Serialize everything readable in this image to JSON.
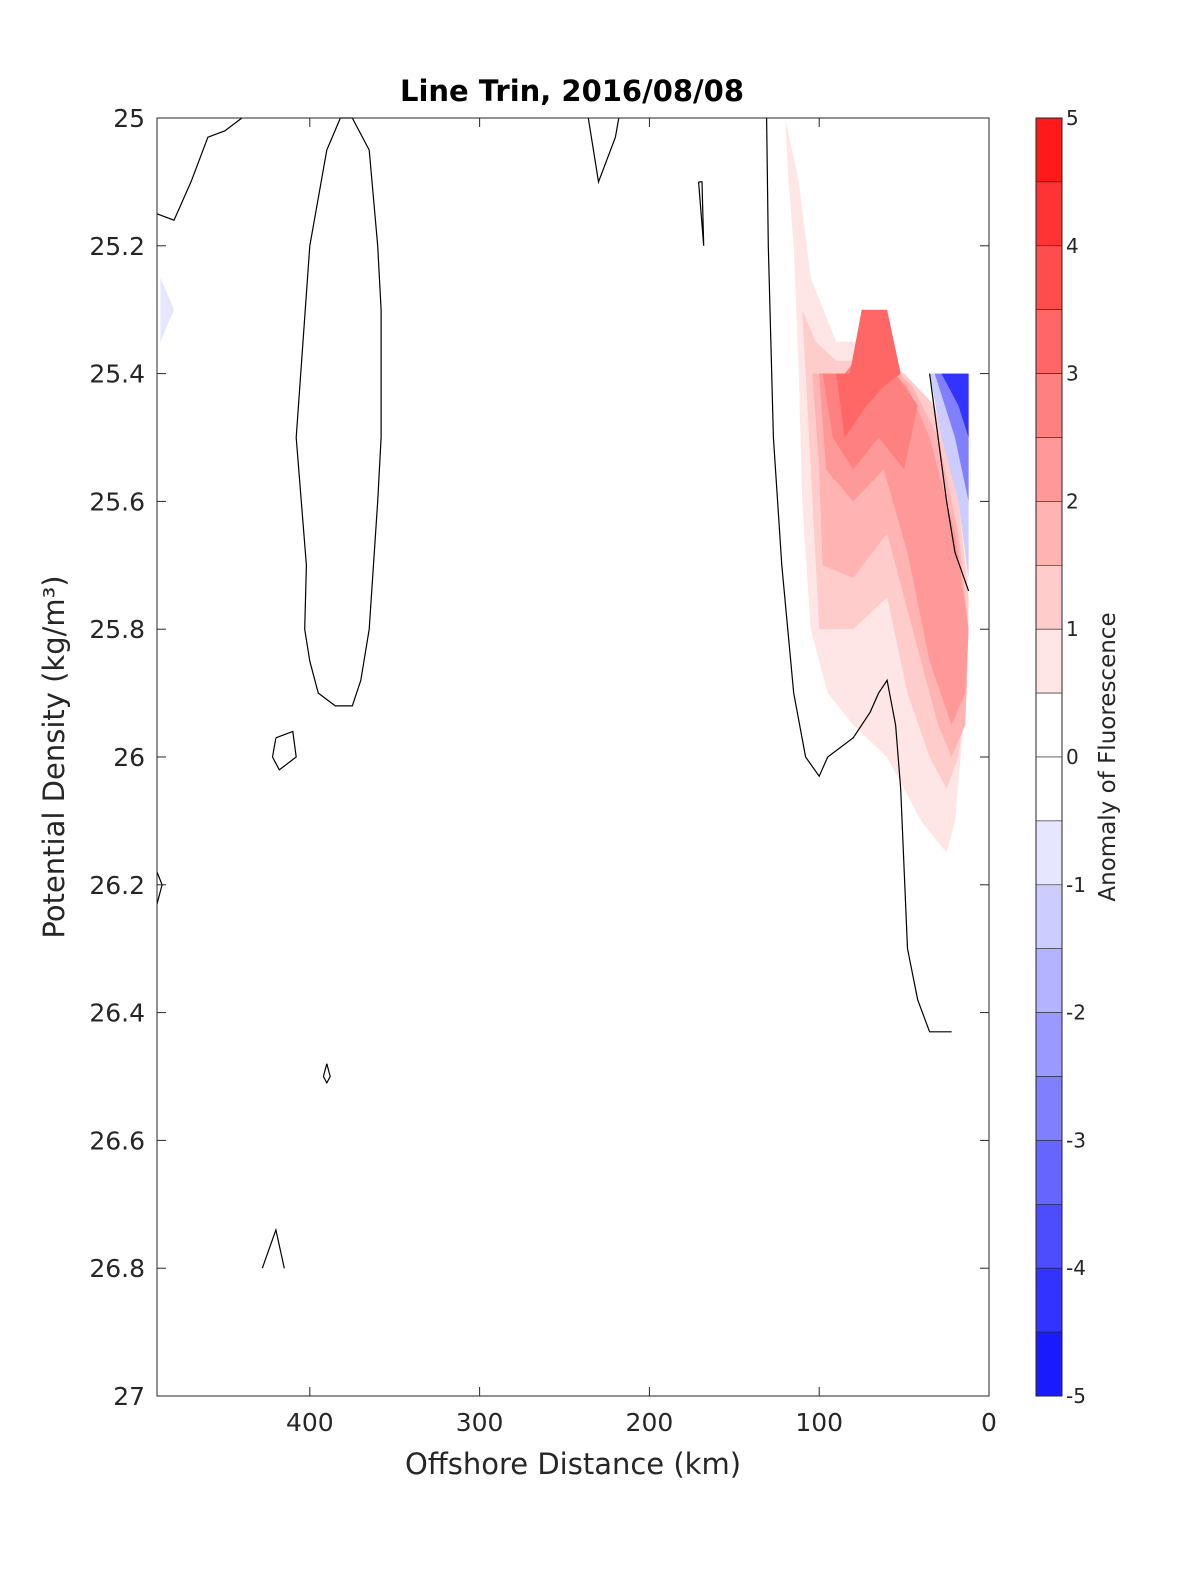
{
  "chart_data": {
    "type": "contour",
    "title": "Line Trin, 2016/08/08",
    "xlabel": "Offshore Distance (km)",
    "ylabel": "Potential Density (kg/m³)",
    "xlim": [
      490,
      0
    ],
    "ylim": [
      25,
      27
    ],
    "x_reversed": true,
    "y_reversed": true,
    "xticks": [
      "400",
      "300",
      "200",
      "100",
      "0"
    ],
    "xtick_values": [
      400,
      300,
      200,
      100,
      0
    ],
    "yticks": [
      "25",
      "25.2",
      "25.4",
      "25.6",
      "25.8",
      "26",
      "26.2",
      "26.4",
      "26.6",
      "26.8",
      "27"
    ],
    "ytick_values": [
      25,
      25.2,
      25.4,
      25.6,
      25.8,
      26,
      26.2,
      26.4,
      26.6,
      26.8,
      27
    ],
    "colorbar": {
      "label": "Anomaly of Fluorescence",
      "ticks": [
        "5",
        "4",
        "3",
        "2",
        "1",
        "0",
        "-1",
        "-2",
        "-3",
        "-4",
        "-5"
      ],
      "tick_values": [
        5,
        4,
        3,
        2,
        1,
        0,
        -1,
        -2,
        -3,
        -4,
        -5
      ],
      "lim": [
        -5,
        5
      ],
      "step": 0.5,
      "negative_color": "#0000ff",
      "positive_color": "#ff0000",
      "zero_color": "#ffffff"
    },
    "filled_regions": [
      {
        "level": 0.5,
        "polygon": [
          [
            120,
            25.0
          ],
          [
            118,
            25.1
          ],
          [
            115,
            25.2
          ],
          [
            112,
            25.4
          ],
          [
            110,
            25.6
          ],
          [
            105,
            25.8
          ],
          [
            95,
            25.9
          ],
          [
            80,
            25.95
          ],
          [
            60,
            26.0
          ],
          [
            40,
            26.1
          ],
          [
            25,
            26.15
          ],
          [
            20,
            26.1
          ],
          [
            15,
            25.95
          ],
          [
            12,
            25.7
          ],
          [
            20,
            25.55
          ],
          [
            35,
            25.45
          ],
          [
            50,
            25.4
          ],
          [
            70,
            25.35
          ],
          [
            90,
            25.35
          ],
          [
            105,
            25.25
          ],
          [
            112,
            25.1
          ]
        ]
      },
      {
        "level": 1.0,
        "polygon": [
          [
            110,
            25.3
          ],
          [
            106,
            25.5
          ],
          [
            102,
            25.7
          ],
          [
            100,
            25.8
          ],
          [
            80,
            25.8
          ],
          [
            60,
            25.75
          ],
          [
            48,
            25.9
          ],
          [
            35,
            26.0
          ],
          [
            25,
            26.05
          ],
          [
            18,
            26.0
          ],
          [
            13,
            25.9
          ],
          [
            12,
            25.75
          ],
          [
            18,
            25.6
          ],
          [
            32,
            25.45
          ],
          [
            50,
            25.4
          ],
          [
            70,
            25.38
          ],
          [
            90,
            25.38
          ],
          [
            102,
            25.35
          ]
        ]
      },
      {
        "level": 1.5,
        "polygon": [
          [
            104,
            25.4
          ],
          [
            100,
            25.55
          ],
          [
            98,
            25.7
          ],
          [
            80,
            25.72
          ],
          [
            60,
            25.65
          ],
          [
            45,
            25.8
          ],
          [
            30,
            25.95
          ],
          [
            22,
            26.0
          ],
          [
            14,
            25.95
          ],
          [
            12,
            25.8
          ],
          [
            18,
            25.65
          ],
          [
            30,
            25.5
          ],
          [
            45,
            25.42
          ],
          [
            60,
            25.38
          ],
          [
            85,
            25.4
          ]
        ]
      },
      {
        "level": 2.0,
        "polygon": [
          [
            100,
            25.4
          ],
          [
            96,
            25.55
          ],
          [
            80,
            25.6
          ],
          [
            62,
            25.55
          ],
          [
            48,
            25.68
          ],
          [
            35,
            25.85
          ],
          [
            22,
            25.95
          ],
          [
            14,
            25.9
          ],
          [
            12,
            25.8
          ],
          [
            20,
            25.65
          ],
          [
            35,
            25.5
          ],
          [
            48,
            25.42
          ],
          [
            65,
            25.38
          ],
          [
            85,
            25.4
          ]
        ]
      },
      {
        "level": 2.5,
        "polygon": [
          [
            98,
            25.4
          ],
          [
            92,
            25.5
          ],
          [
            80,
            25.55
          ],
          [
            65,
            25.5
          ],
          [
            50,
            25.55
          ],
          [
            42,
            25.45
          ],
          [
            55,
            25.4
          ],
          [
            70,
            25.35
          ],
          [
            85,
            25.4
          ]
        ]
      },
      {
        "level": 3.0,
        "polygon": [
          [
            90,
            25.4
          ],
          [
            85,
            25.5
          ],
          [
            72,
            25.45
          ],
          [
            62,
            25.42
          ],
          [
            52,
            25.4
          ],
          [
            60,
            25.3
          ],
          [
            75,
            25.3
          ],
          [
            82,
            25.4
          ]
        ]
      },
      {
        "level": -0.5,
        "polygon": [
          [
            488,
            25.25
          ],
          [
            480,
            25.3
          ],
          [
            488,
            25.35
          ]
        ]
      },
      {
        "level": -1.0,
        "polygon": [
          [
            35,
            25.4
          ],
          [
            12,
            25.4
          ],
          [
            12,
            25.72
          ],
          [
            18,
            25.6
          ],
          [
            28,
            25.5
          ]
        ]
      },
      {
        "level": -2.5,
        "polygon": [
          [
            32,
            25.4
          ],
          [
            12,
            25.4
          ],
          [
            12,
            25.6
          ],
          [
            20,
            25.5
          ]
        ]
      },
      {
        "level": -4.0,
        "polygon": [
          [
            28,
            25.4
          ],
          [
            12,
            25.4
          ],
          [
            12,
            25.5
          ],
          [
            18,
            25.45
          ]
        ]
      }
    ],
    "contour_lines": [
      [
        [
          490,
          25.15
        ],
        [
          480,
          25.16
        ],
        [
          470,
          25.1
        ],
        [
          460,
          25.03
        ],
        [
          450,
          25.02
        ],
        [
          440,
          25.0
        ]
      ],
      [
        [
          382,
          25.0
        ],
        [
          390,
          25.05
        ],
        [
          400,
          25.2
        ],
        [
          408,
          25.5
        ],
        [
          405,
          25.6
        ],
        [
          402,
          25.7
        ],
        [
          403,
          25.8
        ],
        [
          400,
          25.85
        ],
        [
          395,
          25.9
        ],
        [
          385,
          25.92
        ],
        [
          375,
          25.92
        ],
        [
          370,
          25.88
        ],
        [
          365,
          25.8
        ],
        [
          360,
          25.6
        ],
        [
          358,
          25.5
        ],
        [
          358,
          25.3
        ],
        [
          360,
          25.2
        ],
        [
          365,
          25.05
        ],
        [
          375,
          25.0
        ],
        [
          382,
          25.0
        ]
      ],
      [
        [
          236,
          25.0
        ],
        [
          230,
          25.1
        ],
        [
          220,
          25.03
        ],
        [
          218,
          25.0
        ]
      ],
      [
        [
          171,
          25.1
        ],
        [
          169,
          25.1
        ],
        [
          168,
          25.2
        ],
        [
          171,
          25.1
        ]
      ],
      [
        [
          131,
          25.0
        ],
        [
          130,
          25.2
        ],
        [
          127,
          25.5
        ],
        [
          122,
          25.7
        ],
        [
          115,
          25.9
        ],
        [
          108,
          26.0
        ],
        [
          100,
          26.03
        ],
        [
          95,
          26.0
        ],
        [
          80,
          25.97
        ],
        [
          70,
          25.93
        ],
        [
          65,
          25.9
        ],
        [
          60,
          25.88
        ],
        [
          55,
          25.95
        ],
        [
          52,
          26.05
        ],
        [
          48,
          26.3
        ],
        [
          42,
          26.38
        ],
        [
          35,
          26.43
        ],
        [
          22,
          26.43
        ]
      ],
      [
        [
          35,
          25.4
        ],
        [
          30,
          25.5
        ],
        [
          25,
          25.6
        ],
        [
          20,
          25.68
        ],
        [
          12,
          25.74
        ]
      ],
      [
        [
          420,
          25.97
        ],
        [
          410,
          25.96
        ],
        [
          408,
          26.0
        ],
        [
          418,
          26.02
        ],
        [
          422,
          26.0
        ],
        [
          420,
          25.97
        ]
      ],
      [
        [
          490,
          26.18
        ],
        [
          487,
          26.2
        ],
        [
          490,
          26.23
        ]
      ],
      [
        [
          390,
          26.48
        ],
        [
          388,
          26.5
        ],
        [
          390,
          26.51
        ],
        [
          392,
          26.5
        ],
        [
          390,
          26.48
        ]
      ],
      [
        [
          428,
          26.8
        ],
        [
          420,
          26.74
        ],
        [
          415,
          26.8
        ]
      ]
    ]
  }
}
